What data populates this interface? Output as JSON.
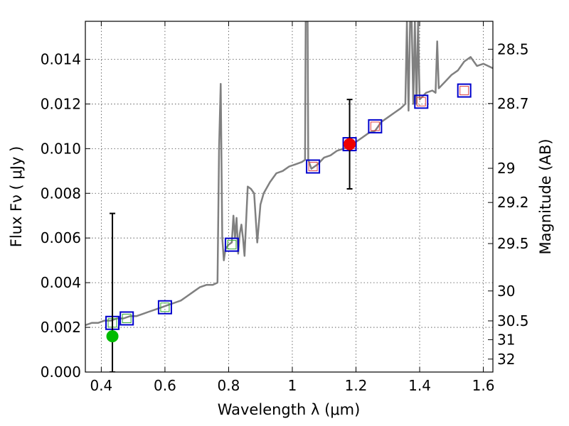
{
  "chart_data": {
    "type": "scatter",
    "title": "",
    "xlabel": "Wavelength  λ (μm)",
    "ylabel": "Flux  Fν  ( μJy )",
    "y2label": "Magnitude (AB)",
    "xlim": [
      0.35,
      1.63
    ],
    "ylim": [
      0.0,
      0.0157
    ],
    "grid": true,
    "legend": "none",
    "xticks": [
      {
        "v": 0.4,
        "label": "0.4"
      },
      {
        "v": 0.6,
        "label": "0.6"
      },
      {
        "v": 0.8,
        "label": "0.8"
      },
      {
        "v": 1.0,
        "label": "1"
      },
      {
        "v": 1.2,
        "label": "1.2"
      },
      {
        "v": 1.4,
        "label": "1.4"
      },
      {
        "v": 1.6,
        "label": "1.6"
      }
    ],
    "yticks": [
      {
        "v": 0.0,
        "label": "0.000"
      },
      {
        "v": 0.002,
        "label": "0.002"
      },
      {
        "v": 0.004,
        "label": "0.004"
      },
      {
        "v": 0.006,
        "label": "0.006"
      },
      {
        "v": 0.008,
        "label": "0.008"
      },
      {
        "v": 0.01,
        "label": "0.010"
      },
      {
        "v": 0.012,
        "label": "0.012"
      },
      {
        "v": 0.014,
        "label": "0.014"
      }
    ],
    "mag_ticks": [
      {
        "label": "28.5",
        "flux": 0.01445
      },
      {
        "label": "28.7",
        "flux": 0.01202
      },
      {
        "label": "29",
        "flux": 0.00912
      },
      {
        "label": "29.2",
        "flux": 0.00759
      },
      {
        "label": "29.5",
        "flux": 0.00575
      },
      {
        "label": "30",
        "flux": 0.00363
      },
      {
        "label": "30.5",
        "flux": 0.00229
      },
      {
        "label": "31",
        "flux": 0.00145
      },
      {
        "label": "32",
        "flux": 0.00058
      }
    ],
    "series": [
      {
        "kind": "line",
        "color": "#808080",
        "x": [
          0.35,
          0.37,
          0.39,
          0.41,
          0.43,
          0.45,
          0.47,
          0.49,
          0.51,
          0.53,
          0.55,
          0.57,
          0.59,
          0.61,
          0.63,
          0.65,
          0.67,
          0.69,
          0.71,
          0.73,
          0.75,
          0.765,
          0.77,
          0.775,
          0.78,
          0.785,
          0.79,
          0.8,
          0.81,
          0.815,
          0.82,
          0.825,
          0.83,
          0.835,
          0.84,
          0.845,
          0.85,
          0.86,
          0.87,
          0.88,
          0.89,
          0.9,
          0.91,
          0.93,
          0.95,
          0.97,
          0.99,
          1.01,
          1.03,
          1.04,
          1.042,
          1.048,
          1.05,
          1.055,
          1.06,
          1.08,
          1.1,
          1.12,
          1.14,
          1.16,
          1.18,
          1.2,
          1.22,
          1.24,
          1.26,
          1.28,
          1.3,
          1.32,
          1.34,
          1.355,
          1.36,
          1.365,
          1.37,
          1.375,
          1.38,
          1.385,
          1.39,
          1.395,
          1.4,
          1.42,
          1.44,
          1.45,
          1.455,
          1.46,
          1.48,
          1.5,
          1.52,
          1.54,
          1.56,
          1.58,
          1.6,
          1.63
        ],
        "y": [
          0.0021,
          0.0022,
          0.0022,
          0.0023,
          0.0023,
          0.0024,
          0.0024,
          0.0025,
          0.0025,
          0.0026,
          0.0027,
          0.0028,
          0.0029,
          0.003,
          0.0031,
          0.0032,
          0.0034,
          0.0036,
          0.0038,
          0.0039,
          0.0039,
          0.004,
          0.01,
          0.0129,
          0.006,
          0.005,
          0.0055,
          0.0057,
          0.0058,
          0.007,
          0.006,
          0.0069,
          0.0053,
          0.0062,
          0.0066,
          0.006,
          0.0052,
          0.0083,
          0.0082,
          0.008,
          0.0058,
          0.0075,
          0.008,
          0.0085,
          0.0089,
          0.009,
          0.0092,
          0.0093,
          0.0094,
          0.0095,
          0.0157,
          0.0157,
          0.0095,
          0.0093,
          0.0091,
          0.0093,
          0.0096,
          0.0097,
          0.0099,
          0.01,
          0.0101,
          0.0103,
          0.0105,
          0.0107,
          0.0108,
          0.0112,
          0.0114,
          0.0116,
          0.0118,
          0.012,
          0.0157,
          0.0117,
          0.0157,
          0.0157,
          0.012,
          0.0157,
          0.012,
          0.0157,
          0.0122,
          0.0125,
          0.0126,
          0.0125,
          0.0148,
          0.0127,
          0.013,
          0.0133,
          0.0135,
          0.0139,
          0.0141,
          0.0137,
          0.0138,
          0.0136
        ]
      },
      {
        "kind": "markers",
        "marker": "square-outline",
        "color": "#0000cc",
        "x": [
          0.435,
          0.48,
          0.6,
          0.81,
          1.065,
          1.18,
          1.26,
          1.405,
          1.54
        ],
        "y": [
          0.0022,
          0.0024,
          0.0029,
          0.0057,
          0.0092,
          0.0102,
          0.011,
          0.0121,
          0.0126
        ]
      },
      {
        "kind": "markers",
        "marker": "small-square",
        "color": "#33aa33",
        "x": [
          0.435,
          0.48,
          0.6,
          0.81
        ],
        "y": [
          0.0022,
          0.0024,
          0.0029,
          0.0057
        ]
      },
      {
        "kind": "markers",
        "marker": "small-square",
        "color": "#dd4444",
        "x": [
          1.065,
          1.18,
          1.26,
          1.405,
          1.54
        ],
        "y": [
          0.0092,
          0.0102,
          0.011,
          0.0121,
          0.0126
        ]
      },
      {
        "kind": "errorpoint",
        "color": "#00bb00",
        "x": 0.435,
        "y": 0.0016,
        "yerr_low": 0.0,
        "yerr_high": 0.0071
      },
      {
        "kind": "errorpoint",
        "color": "#ee0000",
        "x": 1.18,
        "y": 0.0102,
        "yerr_low": 0.0082,
        "yerr_high": 0.0122
      }
    ]
  }
}
